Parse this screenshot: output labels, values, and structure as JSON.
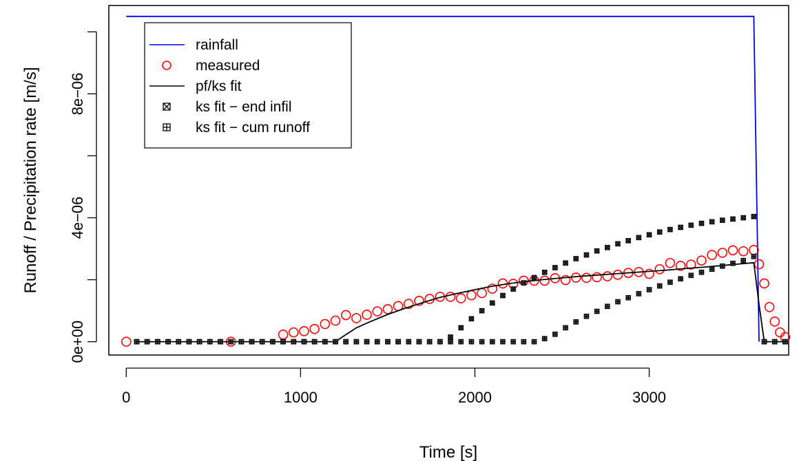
{
  "chart_data": {
    "type": "line",
    "title": "",
    "xlabel": "Time [s]",
    "ylabel": "Runoff / Precipitation rate [m/s]",
    "xlim": [
      -100,
      3800
    ],
    "ylim": [
      -4.3e-07,
      1.085e-05
    ],
    "x_ticks": [
      0,
      1000,
      2000,
      3000
    ],
    "x_tick_labels": [
      "0",
      "1000",
      "2000",
      "3000"
    ],
    "y_ticks": [
      0,
      2e-06,
      4e-06,
      6e-06,
      8e-06,
      1e-05
    ],
    "y_tick_labels": [
      "0e+00",
      "",
      "4e−06",
      "",
      "8e−06",
      ""
    ],
    "grid": false,
    "legend_position": "top-left",
    "legend": [
      "rainfall",
      "measured",
      "pf/ks fit",
      "ks fit − end infil",
      "ks fit − cum runoff"
    ],
    "colors": {
      "rainfall": "#0000ff",
      "measured": "#ff0000",
      "fit": "#000000"
    },
    "series": [
      {
        "name": "rainfall",
        "kind": "line",
        "x": [
          0,
          3600,
          3630
        ],
        "y": [
          1.05e-05,
          1.05e-05,
          0
        ]
      },
      {
        "name": "measured",
        "kind": "points",
        "x": [
          0,
          600,
          900,
          960,
          1020,
          1080,
          1140,
          1200,
          1260,
          1320,
          1380,
          1440,
          1500,
          1560,
          1620,
          1680,
          1740,
          1800,
          1860,
          1920,
          1980,
          2040,
          2100,
          2160,
          2220,
          2280,
          2340,
          2400,
          2460,
          2520,
          2580,
          2640,
          2700,
          2760,
          2820,
          2880,
          2940,
          3000,
          3060,
          3120,
          3180,
          3240,
          3300,
          3360,
          3420,
          3480,
          3540,
          3600,
          3630,
          3660,
          3690,
          3720,
          3750,
          3780
        ],
        "y": [
          0,
          0,
          2.3e-07,
          3e-07,
          3.4e-07,
          4.1e-07,
          5.7e-07,
          6.8e-07,
          8.6e-07,
          7.6e-07,
          8.7e-07,
          9.8e-07,
          1.05e-06,
          1.15e-06,
          1.22e-06,
          1.32e-06,
          1.38e-06,
          1.45e-06,
          1.45e-06,
          1.4e-06,
          1.5e-06,
          1.57e-06,
          1.71e-06,
          1.88e-06,
          1.87e-06,
          1.97e-06,
          1.97e-06,
          1.97e-06,
          2.05e-06,
          1.99e-06,
          2.07e-06,
          2.06e-06,
          2.08e-06,
          2.11e-06,
          2.16e-06,
          2.22e-06,
          2.25e-06,
          2.19e-06,
          2.34e-06,
          2.54e-06,
          2.45e-06,
          2.49e-06,
          2.62e-06,
          2.8e-06,
          2.87e-06,
          2.95e-06,
          2.92e-06,
          2.96e-06,
          2.5e-06,
          1.88e-06,
          1.12e-06,
          6.5e-07,
          3e-07,
          1.5e-07
        ]
      },
      {
        "name": "pf/ks fit",
        "kind": "line",
        "x": [
          60,
          1200,
          1260,
          1320,
          1400,
          1500,
          1600,
          1700,
          1800,
          1900,
          2000,
          2100,
          2200,
          2300,
          2400,
          2500,
          2600,
          2700,
          2800,
          2900,
          3000,
          3100,
          3200,
          3300,
          3400,
          3500,
          3600,
          3630,
          3660,
          3780
        ],
        "y": [
          0,
          0,
          2.3e-07,
          4.5e-07,
          6.5e-07,
          8.8e-07,
          1.08e-06,
          1.26e-06,
          1.43e-06,
          1.56e-06,
          1.68e-06,
          1.79e-06,
          1.88e-06,
          1.95e-06,
          2.01e-06,
          2.06e-06,
          2.11e-06,
          2.15e-06,
          2.19e-06,
          2.23e-06,
          2.27e-06,
          2.31e-06,
          2.36e-06,
          2.4e-06,
          2.45e-06,
          2.5e-06,
          2.55e-06,
          1.2e-06,
          0,
          0
        ]
      },
      {
        "name": "ks fit − end infil",
        "kind": "points",
        "x": [
          60,
          120,
          180,
          240,
          300,
          360,
          420,
          480,
          540,
          600,
          660,
          720,
          780,
          840,
          900,
          960,
          1020,
          1080,
          1140,
          1200,
          1260,
          1320,
          1380,
          1440,
          1500,
          1560,
          1620,
          1680,
          1740,
          1800,
          1860,
          1920,
          1980,
          2040,
          2100,
          2160,
          2220,
          2280,
          2340,
          2400,
          2460,
          2520,
          2580,
          2640,
          2700,
          2760,
          2820,
          2880,
          2940,
          3000,
          3060,
          3120,
          3180,
          3240,
          3300,
          3360,
          3420,
          3480,
          3540,
          3600,
          3660,
          3720,
          3780
        ],
        "y": [
          0,
          0,
          0,
          0,
          0,
          0,
          0,
          0,
          0,
          0,
          0,
          0,
          0,
          0,
          0,
          0,
          0,
          0,
          0,
          0,
          0,
          0,
          0,
          0,
          0,
          0,
          0,
          0,
          0,
          0,
          1.5e-07,
          4.5e-07,
          7.4e-07,
          1e-06,
          1.25e-06,
          1.49e-06,
          1.7e-06,
          1.9e-06,
          2.07e-06,
          2.24e-06,
          2.39e-06,
          2.54e-06,
          2.68e-06,
          2.8e-06,
          2.93e-06,
          3.04e-06,
          3.16e-06,
          3.26e-06,
          3.36e-06,
          3.45e-06,
          3.54e-06,
          3.62e-06,
          3.69e-06,
          3.76e-06,
          3.82e-06,
          3.87e-06,
          3.92e-06,
          3.96e-06,
          4e-06,
          4.04e-06,
          0,
          0,
          0
        ]
      },
      {
        "name": "ks fit − cum runoff",
        "kind": "points",
        "x": [
          60,
          120,
          180,
          240,
          300,
          360,
          420,
          480,
          540,
          600,
          660,
          720,
          780,
          840,
          900,
          960,
          1020,
          1080,
          1140,
          1200,
          1260,
          1320,
          1380,
          1440,
          1500,
          1560,
          1620,
          1680,
          1740,
          1800,
          1860,
          1920,
          1980,
          2040,
          2100,
          2160,
          2220,
          2280,
          2340,
          2400,
          2460,
          2520,
          2580,
          2640,
          2700,
          2760,
          2820,
          2880,
          2940,
          3000,
          3060,
          3120,
          3180,
          3240,
          3300,
          3360,
          3420,
          3480,
          3540,
          3600,
          3660,
          3720,
          3780
        ],
        "y": [
          0,
          0,
          0,
          0,
          0,
          0,
          0,
          0,
          0,
          0,
          0,
          0,
          0,
          0,
          0,
          0,
          0,
          0,
          0,
          0,
          0,
          0,
          0,
          0,
          0,
          0,
          0,
          0,
          0,
          0,
          0,
          0,
          0,
          0,
          0,
          0,
          0,
          0,
          0,
          1e-07,
          2.4e-07,
          4.5e-07,
          6.4e-07,
          8.2e-07,
          9.8e-07,
          1.14e-06,
          1.29e-06,
          1.42e-06,
          1.55e-06,
          1.68e-06,
          1.8e-06,
          1.92e-06,
          2.03e-06,
          2.14e-06,
          2.24e-06,
          2.34e-06,
          2.44e-06,
          2.53e-06,
          2.62e-06,
          2.75e-06,
          0,
          0,
          0
        ]
      }
    ]
  }
}
